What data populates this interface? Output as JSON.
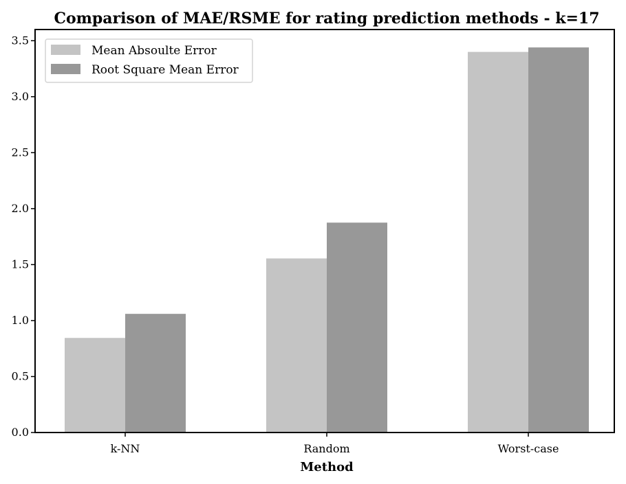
{
  "chart_data": {
    "type": "bar",
    "title": "Comparison of MAE/RSME for rating prediction methods - k=17",
    "xlabel": "Method",
    "ylabel": "",
    "categories": [
      "k-NN",
      "Random",
      "Worst-case"
    ],
    "series": [
      {
        "name": "Mean Absoulte Error",
        "values": [
          0.845,
          1.555,
          3.4
        ],
        "color": "#c4c4c4"
      },
      {
        "name": "Root Square Mean Error",
        "values": [
          1.06,
          1.875,
          3.44
        ],
        "color": "#989898"
      }
    ],
    "ylim": [
      0,
      3.6
    ],
    "yticks": [
      0.0,
      0.5,
      1.0,
      1.5,
      2.0,
      2.5,
      3.0,
      3.5
    ],
    "ytick_labels": [
      "0.0",
      "0.5",
      "1.0",
      "1.5",
      "2.0",
      "2.5",
      "3.0",
      "3.5"
    ],
    "grid": false,
    "legend_position": "top-left"
  }
}
